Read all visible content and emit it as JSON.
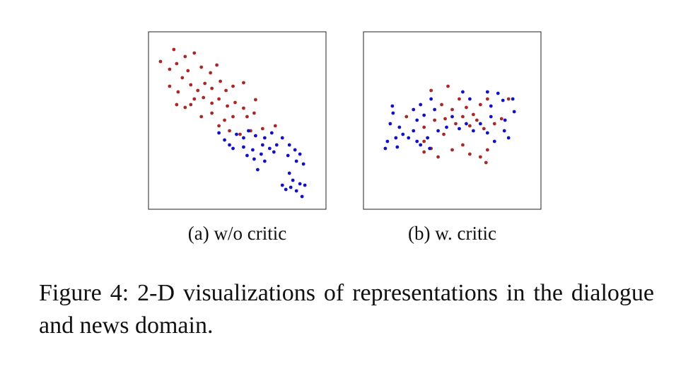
{
  "chart_data": [
    {
      "type": "scatter",
      "title": "(a) w/o critic",
      "xlim": [
        0,
        252
      ],
      "ylim": [
        0,
        251
      ],
      "series": [
        {
          "color": "#a62a2a",
          "x": [
            17,
            36,
            30,
            40,
            52,
            65,
            56,
            48,
            75,
            88,
            97,
            30,
            42,
            60,
            70,
            80,
            90,
            102,
            110,
            120,
            135,
            40,
            52,
            65,
            78,
            90,
            100,
            112,
            123,
            135,
            152,
            75,
            90,
            108,
            120,
            140,
            150,
            130,
            145,
            162,
            180,
            100,
            115,
            60
          ],
          "y": [
            209,
            226,
            198,
            206,
            216,
            221,
            196,
            186,
            201,
            193,
            204,
            174,
            166,
            176,
            168,
            178,
            171,
            181,
            168,
            174,
            179,
            148,
            144,
            156,
            158,
            150,
            156,
            146,
            151,
            143,
            155,
            131,
            136,
            126,
            131,
            131,
            136,
            106,
            111,
            114,
            118,
            118,
            111,
            148
          ]
        },
        {
          "color": "#1212c4",
          "x": [
            100,
            108,
            115,
            125,
            135,
            142,
            152,
            165,
            175,
            120,
            135,
            148,
            160,
            172,
            182,
            190,
            200,
            208,
            215,
            150,
            155,
            165,
            198,
            210,
            220,
            200,
            205,
            215,
            222,
            190,
            195,
            202,
            210,
            218,
            162,
            178,
            140
          ],
          "y": [
            108,
            98,
            91,
            106,
            101,
            111,
            104,
            101,
            108,
            86,
            88,
            84,
            78,
            86,
            91,
            101,
            91,
            84,
            78,
            71,
            56,
            68,
            76,
            68,
            64,
            51,
            41,
            36,
            34,
            34,
            28,
            31,
            26,
            18,
            91,
            81,
            76
          ]
        }
      ]
    },
    {
      "type": "scatter",
      "title": "(b) w. critic",
      "xlim": [
        0,
        252
      ],
      "ylim": [
        0,
        251
      ],
      "series": [
        {
          "color": "#a62a2a",
          "x": [
            96,
            120,
            111,
            126,
            136,
            146,
            156,
            166,
            176,
            86,
            101,
            116,
            131,
            141,
            151,
            161,
            171,
            186,
            196,
            86,
            96,
            106,
            126,
            141,
            151,
            166,
            176,
            174,
            86,
            61,
            206,
            114
          ],
          "y": [
            168,
            174,
            148,
            141,
            156,
            144,
            134,
            148,
            156,
            116,
            126,
            128,
            121,
            131,
            118,
            126,
            114,
            121,
            128,
            81,
            86,
            74,
            84,
            91,
            78,
            74,
            84,
            66,
            96,
            131,
            156,
            106
          ]
        },
        {
          "color": "#1212c4",
          "x": [
            41,
            42,
            38,
            51,
            46,
            34,
            31,
            48,
            56,
            64,
            71,
            76,
            81,
            91,
            94,
            71,
            81,
            86,
            106,
            118,
            126,
            136,
            146,
            156,
            166,
            176,
            181,
            141,
            151,
            176,
            191,
            198,
            212,
            214,
            201,
            200,
            206,
            186,
            96,
            101,
            76,
            181
          ],
          "y": [
            146,
            136,
            121,
            116,
            101,
            96,
            86,
            88,
            106,
            101,
            111,
            96,
            91,
            101,
            86,
            141,
            148,
            133,
            111,
            116,
            131,
            114,
            121,
            111,
            121,
            108,
            131,
            166,
            156,
            166,
            164,
            154,
            156,
            138,
            126,
            111,
            101,
            96,
            156,
            141,
            126,
            146
          ]
        }
      ]
    }
  ],
  "caption": "Figure 4: 2-D visualizations of representations in the dialogue and news domain."
}
